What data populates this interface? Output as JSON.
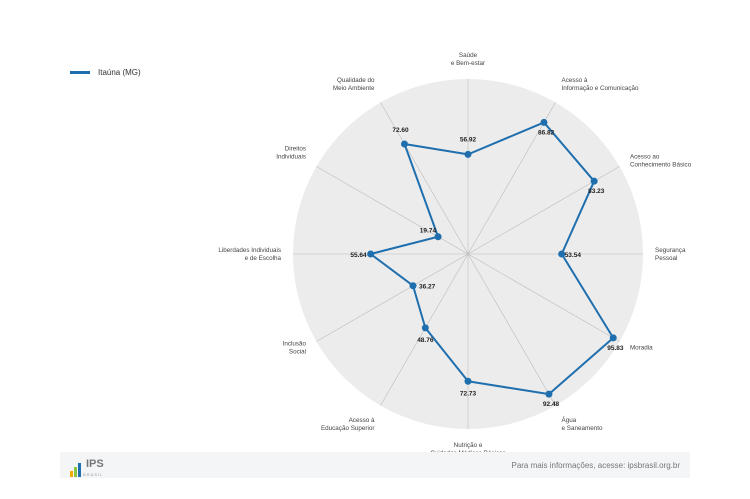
{
  "legend": {
    "label": "Itaúna (MG)"
  },
  "footer": {
    "logo_text": "IPS",
    "logo_sub": "BRASIL",
    "info_text": "Para mais informações, acesse: ipsbrasil.org.br"
  },
  "colors": {
    "series": "#1f6fae",
    "background_disk": "#ececec",
    "spokes": "#bdbdbd"
  },
  "chart_data": {
    "type": "radar",
    "rmax": 100,
    "grid": false,
    "legend_position": "top-left",
    "axes": [
      [
        "Saúde",
        "e Bem-estar"
      ],
      [
        "Acesso à",
        "Informação e Comunicação"
      ],
      [
        "Acesso ao",
        "Conhecimento Básico"
      ],
      [
        "Segurança",
        "Pessoal"
      ],
      [
        "Moradia"
      ],
      [
        "Água",
        "e Saneamento"
      ],
      [
        "Nutrição e",
        "Cuidados Médicos Básicos"
      ],
      [
        "Acesso à",
        "Educação Superior"
      ],
      [
        "Inclusão",
        "Social"
      ],
      [
        "Liberdades Individuais",
        "e de Escolha"
      ],
      [
        "Direitos",
        "Individuais"
      ],
      [
        "Qualidade do",
        "Meio Ambiente"
      ]
    ],
    "series": [
      {
        "name": "Itaúna (MG)",
        "values": [
          56.92,
          86.82,
          83.23,
          53.54,
          95.83,
          92.48,
          72.73,
          48.76,
          36.27,
          55.64,
          19.74,
          72.6
        ],
        "labels": [
          "56.92",
          "86.82",
          "83.23",
          "53.54",
          "95.83",
          "92.48",
          "72.73",
          "48.76",
          "36.27",
          "55.64",
          "19.74",
          "72.60"
        ]
      }
    ]
  }
}
